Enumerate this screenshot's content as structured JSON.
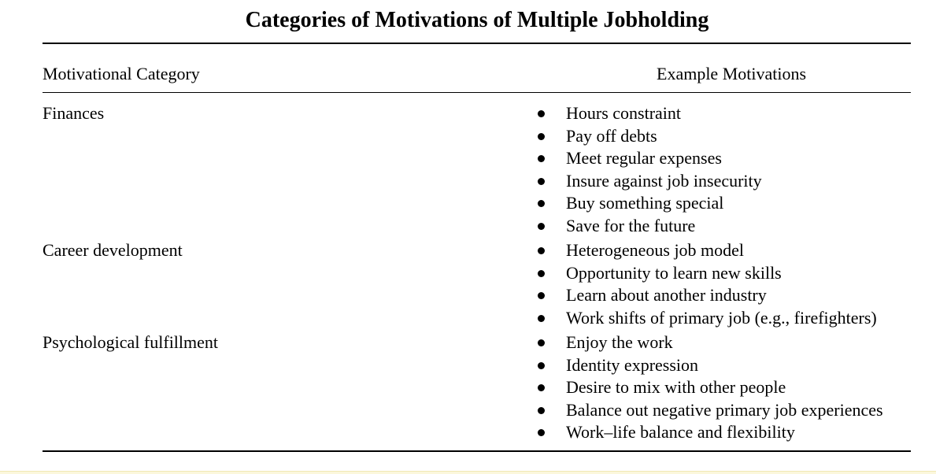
{
  "title": "Categories of Motivations of Multiple Jobholding",
  "headers": {
    "category": "Motivational Category",
    "examples": "Example Motivations"
  },
  "rows": [
    {
      "category": "Finances",
      "examples": [
        "Hours constraint",
        "Pay off debts",
        "Meet regular expenses",
        "Insure against job insecurity",
        "Buy something special",
        "Save for the future"
      ]
    },
    {
      "category": "Career development",
      "examples": [
        "Heterogeneous job model",
        "Opportunity to learn new skills",
        "Learn about another industry",
        "Work shifts of primary job (e.g., firefighters)"
      ]
    },
    {
      "category": "Psychological fulfillment",
      "examples": [
        "Enjoy the work",
        "Identity expression",
        "Desire to mix with other people",
        "Balance out negative primary job experiences",
        "Work–life balance and flexibility"
      ]
    }
  ]
}
